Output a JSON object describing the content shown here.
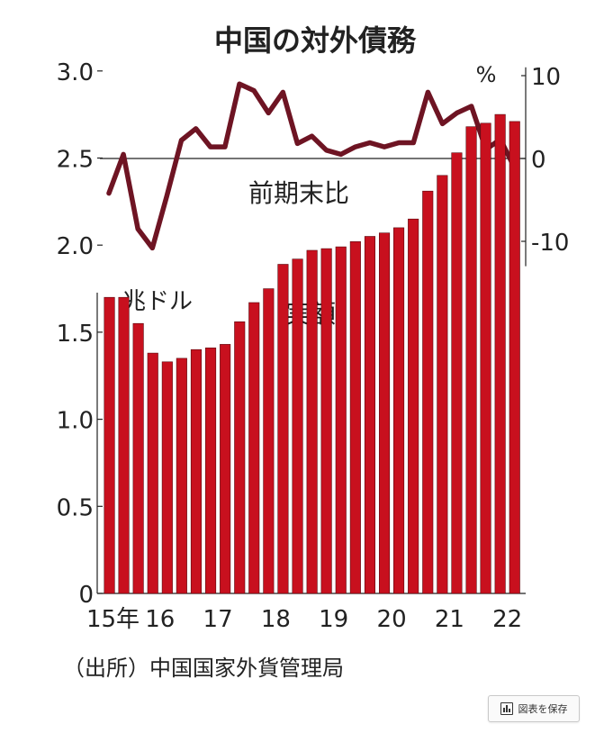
{
  "title": "中国の対外債務",
  "source": "（出所）中国国家外貨管理局",
  "save_button": {
    "label": "図表を保存",
    "icon": "bar-chart-icon"
  },
  "colors": {
    "line": "#6e1423",
    "bar": "#c8101e",
    "axis": "#222222"
  },
  "chart_data": [
    {
      "type": "line",
      "series_label": "前期末比",
      "unit_label": "%",
      "ylim": [
        -13,
        11
      ],
      "yticks": [
        10,
        0,
        -10
      ],
      "ytick_labels": [
        "10",
        "0",
        "-10"
      ],
      "y_axis_side": "right",
      "zero_line": true,
      "values": [
        -4.2,
        0.5,
        -8.5,
        -10.8,
        -4.5,
        2.2,
        3.6,
        1.4,
        1.4,
        9.0,
        8.2,
        5.5,
        8.0,
        1.8,
        2.7,
        1.0,
        0.5,
        1.4,
        1.9,
        1.4,
        1.9,
        1.9,
        8.0,
        4.2,
        5.5,
        6.3,
        1.1,
        2.3,
        -1.2
      ]
    },
    {
      "type": "bar",
      "series_label": "実額",
      "unit_label": "兆ドル",
      "ylim": [
        0,
        3.3
      ],
      "yticks": [
        0,
        0.5,
        1.0,
        1.5,
        2.0,
        2.5,
        3.0
      ],
      "ytick_labels": [
        "0",
        "0.5",
        "1.0",
        "1.5",
        "2.0",
        "2.5",
        "3.0"
      ],
      "xtick_labels": [
        "15年",
        "16",
        "17",
        "18",
        "19",
        "20",
        "21",
        "22"
      ],
      "values": [
        1.7,
        1.7,
        1.55,
        1.38,
        1.33,
        1.35,
        1.4,
        1.41,
        1.43,
        1.56,
        1.67,
        1.75,
        1.89,
        1.92,
        1.97,
        1.98,
        1.99,
        2.02,
        2.05,
        2.07,
        2.1,
        2.15,
        2.31,
        2.4,
        2.53,
        2.68,
        2.7,
        2.75,
        2.71
      ]
    }
  ]
}
